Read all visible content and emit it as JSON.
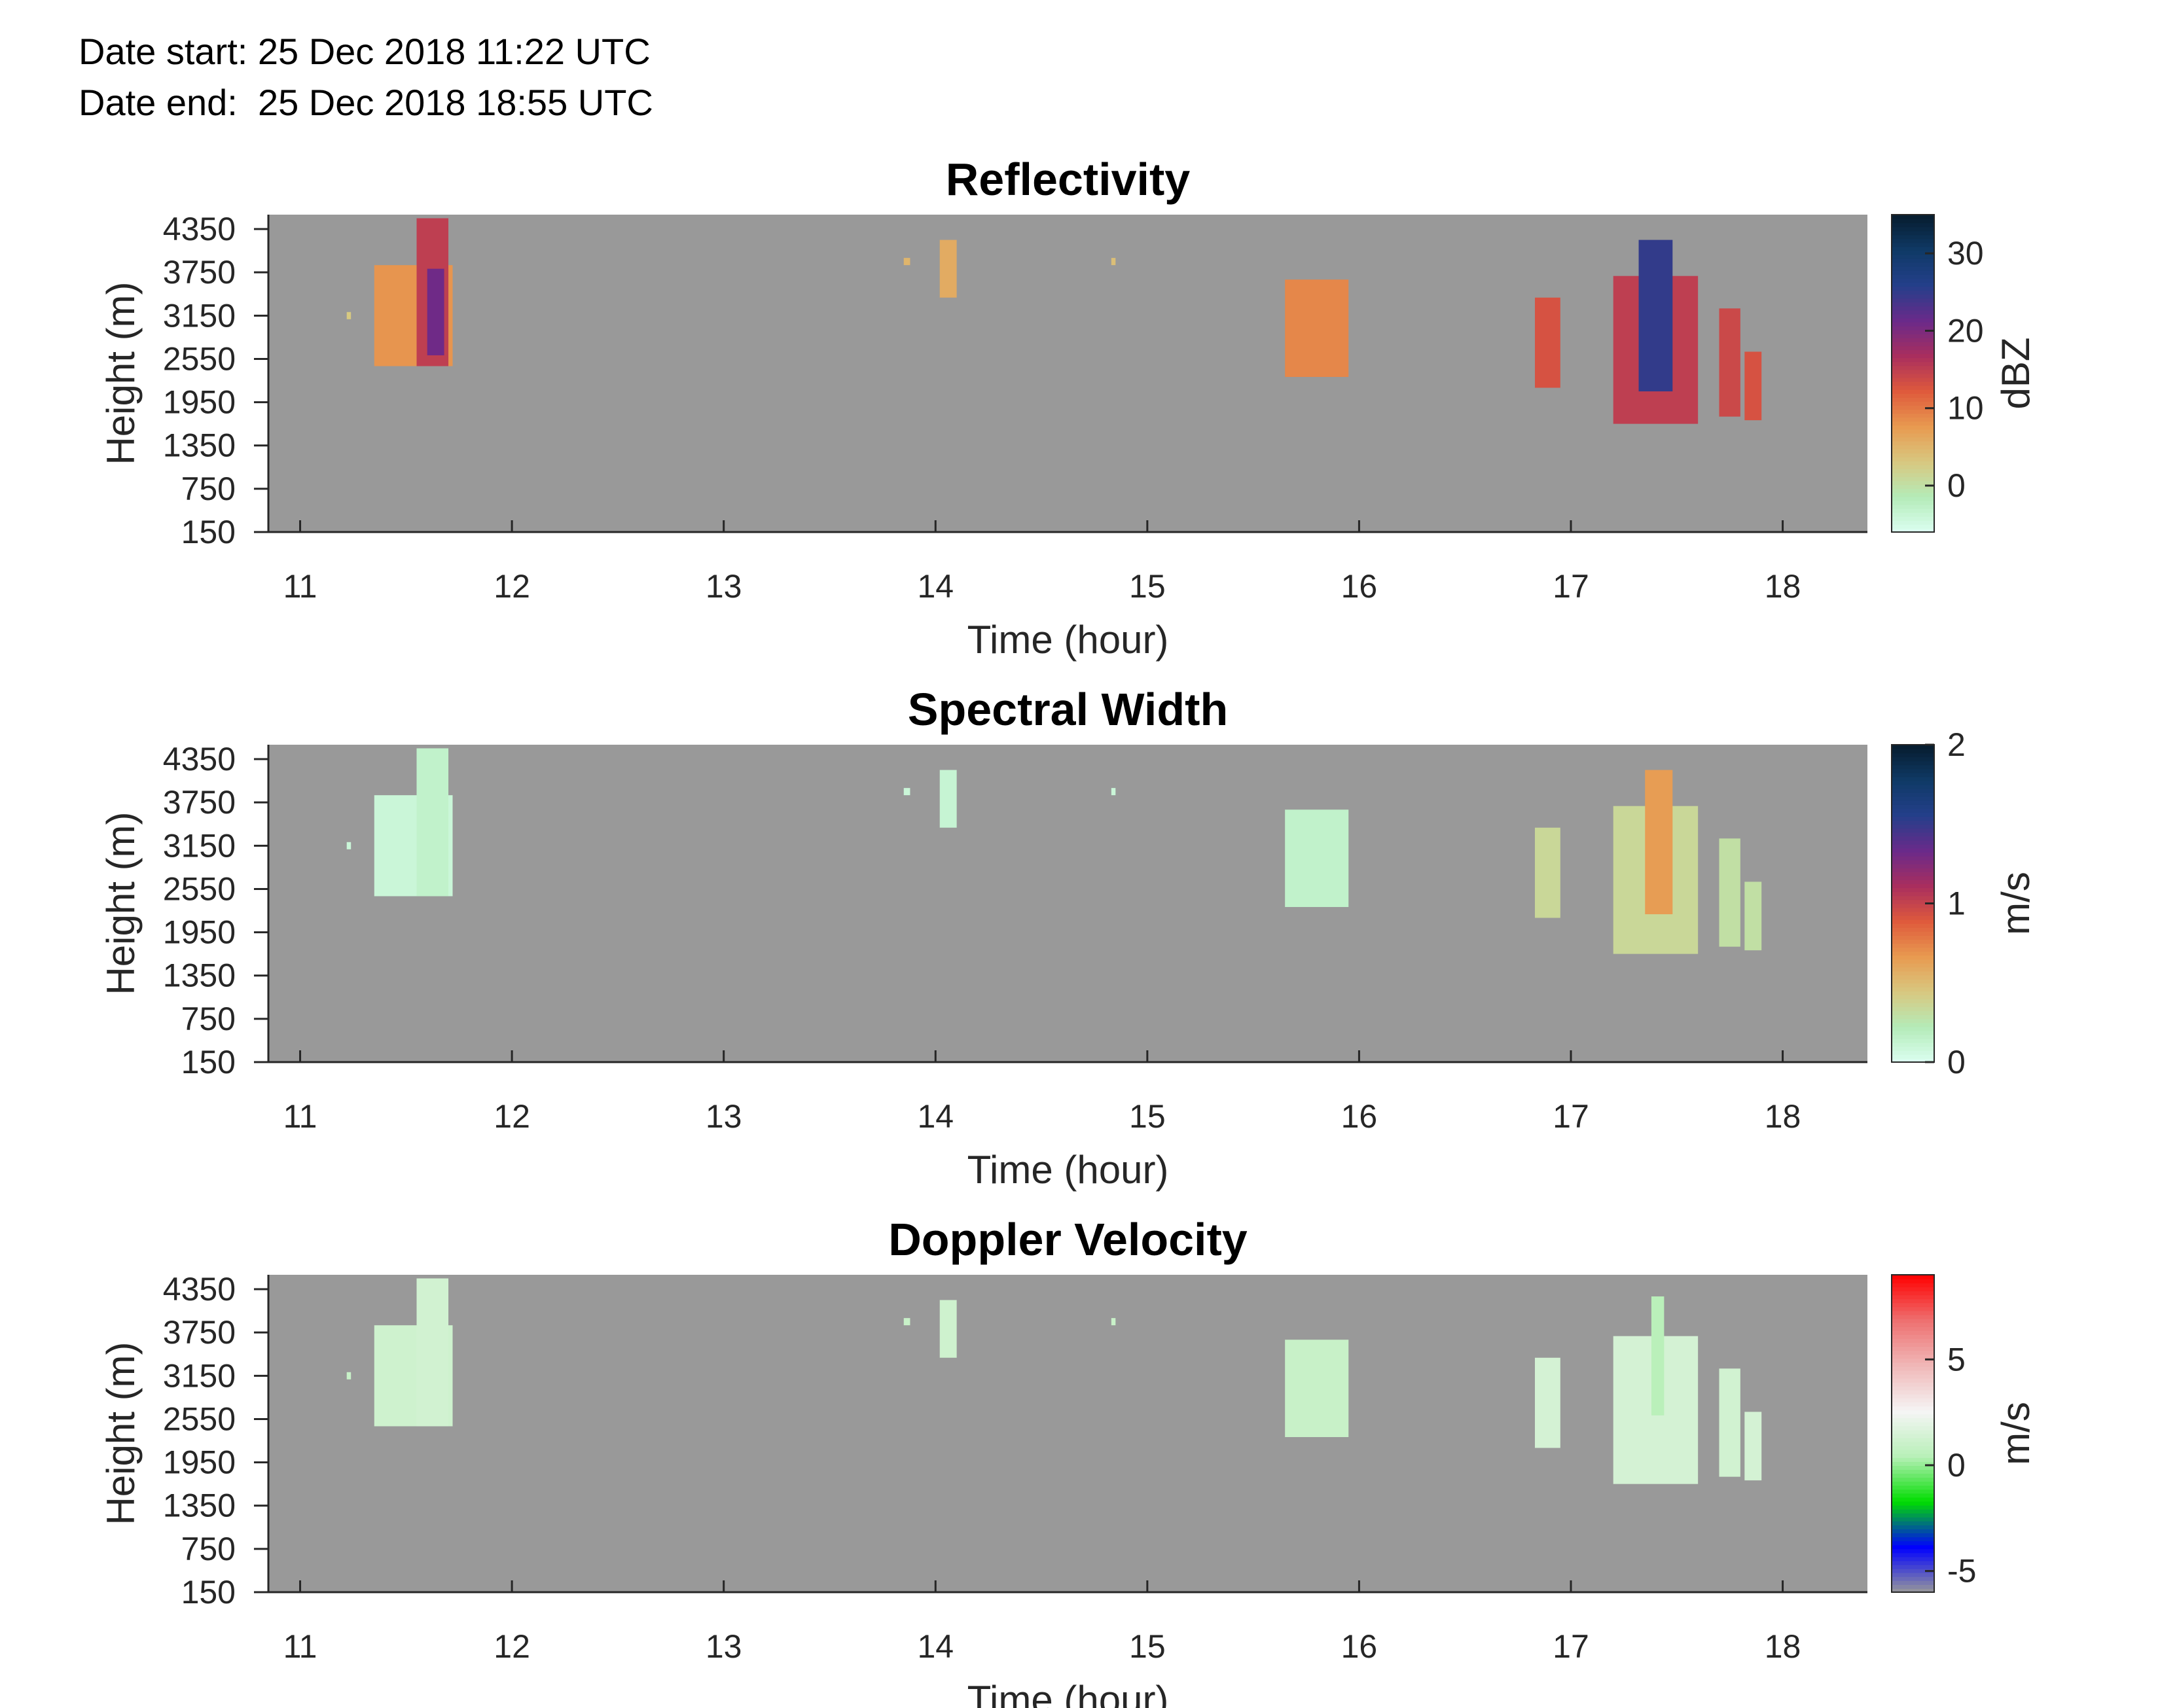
{
  "header": {
    "date_start": "Date start: 25 Dec 2018 11:22 UTC",
    "date_end": "Date end:  25 Dec 2018 18:55 UTC"
  },
  "colors": {
    "background_gray": "#999999",
    "axis": "#262626"
  },
  "chart_data": [
    {
      "type": "heatmap",
      "title": "Reflectivity",
      "xlabel": "Time (hour)",
      "ylabel": "Height (m)",
      "xlim": [
        10.85,
        18.4
      ],
      "ylim": [
        150,
        4550
      ],
      "xticks": [
        11,
        12,
        13,
        14,
        15,
        16,
        17,
        18
      ],
      "yticks": [
        150,
        750,
        1350,
        1950,
        2550,
        3150,
        3750,
        4350
      ],
      "colorbar": {
        "label": "dBZ",
        "range": [
          -6,
          35
        ],
        "ticks": [
          0,
          10,
          20,
          30
        ],
        "colormap": [
          "#dcfff2",
          "#b4ebb8",
          "#d8c880",
          "#e89a50",
          "#df5a3c",
          "#a92e5e",
          "#6a2a8a",
          "#243f8a",
          "#0f3a66",
          "#071c2e"
        ]
      },
      "cells": [
        {
          "t0": 11.35,
          "t1": 11.72,
          "h0": 2450,
          "h1": 3850,
          "v": 8
        },
        {
          "t0": 11.55,
          "t1": 11.7,
          "h0": 2450,
          "h1": 4500,
          "v": 15
        },
        {
          "t0": 11.6,
          "t1": 11.68,
          "h0": 2600,
          "h1": 3800,
          "v": 21
        },
        {
          "t0": 11.22,
          "t1": 11.24,
          "h0": 3100,
          "h1": 3200,
          "v": 3
        },
        {
          "t0": 13.85,
          "t1": 13.88,
          "h0": 3850,
          "h1": 3950,
          "v": 5
        },
        {
          "t0": 14.02,
          "t1": 14.1,
          "h0": 3400,
          "h1": 4200,
          "v": 6
        },
        {
          "t0": 14.83,
          "t1": 14.85,
          "h0": 3850,
          "h1": 3950,
          "v": 4
        },
        {
          "t0": 15.65,
          "t1": 15.95,
          "h0": 2300,
          "h1": 3650,
          "v": 9
        },
        {
          "t0": 16.83,
          "t1": 16.95,
          "h0": 2150,
          "h1": 3400,
          "v": 13
        },
        {
          "t0": 17.2,
          "t1": 17.6,
          "h0": 1650,
          "h1": 3700,
          "v": 15
        },
        {
          "t0": 17.32,
          "t1": 17.48,
          "h0": 2100,
          "h1": 4200,
          "v": 25
        },
        {
          "t0": 17.7,
          "t1": 17.8,
          "h0": 1750,
          "h1": 3250,
          "v": 14
        },
        {
          "t0": 17.82,
          "t1": 17.9,
          "h0": 1700,
          "h1": 2650,
          "v": 13
        }
      ]
    },
    {
      "type": "heatmap",
      "title": "Spectral Width",
      "xlabel": "Time (hour)",
      "ylabel": "Height (m)",
      "xlim": [
        10.85,
        18.4
      ],
      "ylim": [
        150,
        4550
      ],
      "xticks": [
        11,
        12,
        13,
        14,
        15,
        16,
        17,
        18
      ],
      "yticks": [
        150,
        750,
        1350,
        1950,
        2550,
        3150,
        3750,
        4350
      ],
      "colorbar": {
        "label": "m/s",
        "range": [
          0,
          2
        ],
        "ticks": [
          0,
          1,
          2
        ],
        "colormap": [
          "#dcfff2",
          "#b4ebb8",
          "#d8c880",
          "#e89a50",
          "#df5a3c",
          "#a92e5e",
          "#6a2a8a",
          "#243f8a",
          "#0f3a66",
          "#071c2e"
        ]
      },
      "cells": [
        {
          "t0": 11.35,
          "t1": 11.72,
          "h0": 2450,
          "h1": 3850,
          "v": 0.1
        },
        {
          "t0": 11.55,
          "t1": 11.7,
          "h0": 2450,
          "h1": 4500,
          "v": 0.15
        },
        {
          "t0": 11.22,
          "t1": 11.24,
          "h0": 3100,
          "h1": 3200,
          "v": 0.1
        },
        {
          "t0": 13.85,
          "t1": 13.88,
          "h0": 3850,
          "h1": 3950,
          "v": 0.1
        },
        {
          "t0": 14.02,
          "t1": 14.1,
          "h0": 3400,
          "h1": 4200,
          "v": 0.12
        },
        {
          "t0": 14.83,
          "t1": 14.85,
          "h0": 3850,
          "h1": 3950,
          "v": 0.1
        },
        {
          "t0": 15.65,
          "t1": 15.95,
          "h0": 2300,
          "h1": 3650,
          "v": 0.15
        },
        {
          "t0": 16.83,
          "t1": 16.95,
          "h0": 2150,
          "h1": 3400,
          "v": 0.35
        },
        {
          "t0": 17.2,
          "t1": 17.6,
          "h0": 1650,
          "h1": 3700,
          "v": 0.35
        },
        {
          "t0": 17.35,
          "t1": 17.48,
          "h0": 2200,
          "h1": 4200,
          "v": 0.65
        },
        {
          "t0": 17.7,
          "t1": 17.8,
          "h0": 1750,
          "h1": 3250,
          "v": 0.3
        },
        {
          "t0": 17.82,
          "t1": 17.9,
          "h0": 1700,
          "h1": 2650,
          "v": 0.3
        }
      ]
    },
    {
      "type": "heatmap",
      "title": "Doppler Velocity",
      "xlabel": "Time (hour)",
      "ylabel": "Height (m)",
      "xlim": [
        10.85,
        18.4
      ],
      "ylim": [
        150,
        4550
      ],
      "xticks": [
        11,
        12,
        13,
        14,
        15,
        16,
        17,
        18
      ],
      "yticks": [
        150,
        750,
        1350,
        1950,
        2550,
        3150,
        3750,
        4350
      ],
      "colorbar": {
        "label": "m/s",
        "range": [
          -6,
          9
        ],
        "ticks": [
          -5,
          0,
          5
        ],
        "colormap": [
          "#999999",
          "#0000ff",
          "#00dd00",
          "#b8f0b8",
          "#f5f5f5",
          "#f0b8b8",
          "#ee7070",
          "#ff0000"
        ]
      },
      "cells": [
        {
          "t0": 11.35,
          "t1": 11.72,
          "h0": 2450,
          "h1": 3850,
          "v": 1.2
        },
        {
          "t0": 11.55,
          "t1": 11.7,
          "h0": 2450,
          "h1": 4500,
          "v": 1.3
        },
        {
          "t0": 11.22,
          "t1": 11.24,
          "h0": 3100,
          "h1": 3200,
          "v": 1.0
        },
        {
          "t0": 13.85,
          "t1": 13.88,
          "h0": 3850,
          "h1": 3950,
          "v": 1.0
        },
        {
          "t0": 14.02,
          "t1": 14.1,
          "h0": 3400,
          "h1": 4200,
          "v": 1.2
        },
        {
          "t0": 14.83,
          "t1": 14.85,
          "h0": 3850,
          "h1": 3950,
          "v": 1.0
        },
        {
          "t0": 15.65,
          "t1": 15.95,
          "h0": 2300,
          "h1": 3650,
          "v": 1.0
        },
        {
          "t0": 16.83,
          "t1": 16.95,
          "h0": 2150,
          "h1": 3400,
          "v": 1.4
        },
        {
          "t0": 17.2,
          "t1": 17.6,
          "h0": 1650,
          "h1": 3700,
          "v": 1.4
        },
        {
          "t0": 17.38,
          "t1": 17.44,
          "h0": 2600,
          "h1": 4250,
          "v": 0.5
        },
        {
          "t0": 17.7,
          "t1": 17.8,
          "h0": 1750,
          "h1": 3250,
          "v": 1.3
        },
        {
          "t0": 17.82,
          "t1": 17.9,
          "h0": 1700,
          "h1": 2650,
          "v": 1.4
        }
      ]
    }
  ]
}
